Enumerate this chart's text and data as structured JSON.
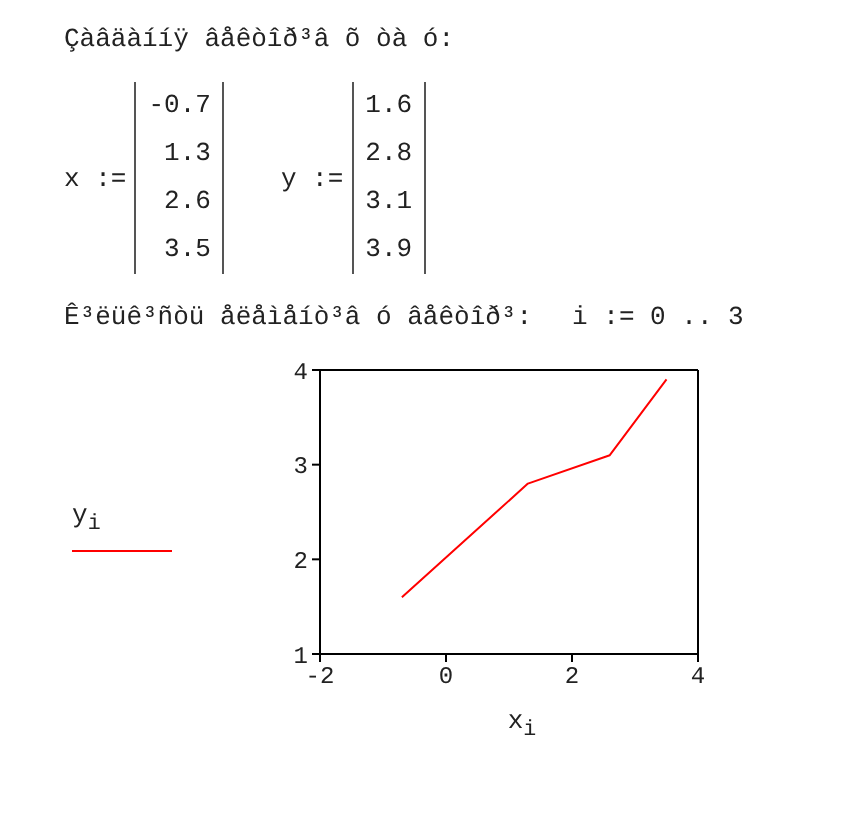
{
  "chart_data": {
    "type": "line",
    "title": "Çàâäàííÿ âåêòîð³â õ òà ó:",
    "annotations": [
      "x :=",
      "-0.7",
      "1.3",
      "2.6",
      "3.5",
      "y :=",
      "1.6",
      "2.8",
      "3.1",
      "3.9",
      "Ê³ëüê³ñòü åëåìåíò³â ó âåêòîð³:",
      "i := 0 .. 3"
    ],
    "x": [
      -0.7,
      1.3,
      2.6,
      3.5
    ],
    "series": [
      {
        "name": "y$_{i}$",
        "color": "#ff0000",
        "values": [
          1.6,
          2.8,
          3.1,
          3.9
        ]
      }
    ],
    "xlabel": "x$_{i}$",
    "xlim": [
      -2,
      4
    ],
    "xticks": [
      -2,
      0,
      2,
      4
    ],
    "ylim": [
      1,
      4
    ],
    "yticks": [
      1,
      2,
      3,
      4
    ],
    "legend": "left",
    "marker": "none",
    "line_style": "solid",
    "grid": false
  }
}
